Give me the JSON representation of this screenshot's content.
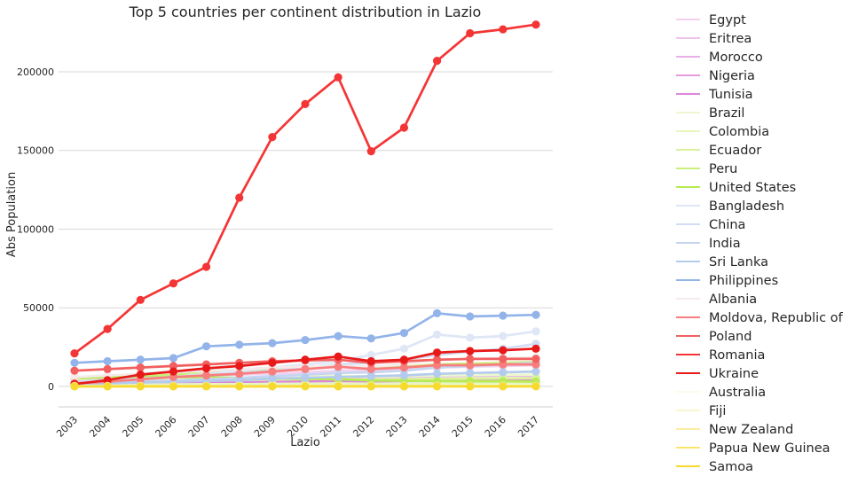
{
  "chart_data": {
    "type": "line",
    "title": "Top 5 countries per continent distribution in Lazio",
    "xlabel": "Lazio",
    "ylabel": "Abs Population",
    "x": [
      "2003",
      "2004",
      "2005",
      "2006",
      "2007",
      "2008",
      "2009",
      "2010",
      "2011",
      "2012",
      "2013",
      "2014",
      "2015",
      "2016",
      "2017"
    ],
    "ylim": [
      -13000,
      240000
    ],
    "yticks": [
      0,
      50000,
      100000,
      150000,
      200000
    ],
    "ytick_labels": [
      "0",
      "50000",
      "100000",
      "150000",
      "200000"
    ],
    "grid": "horizontal",
    "legend_position": "right",
    "series": [
      {
        "name": "Egypt",
        "color": "#f2d1f0",
        "values": [
          5000,
          5500,
          6000,
          6500,
          7000,
          7500,
          8000,
          9000,
          10000,
          10500,
          11000,
          12000,
          12500,
          13000,
          13500
        ]
      },
      {
        "name": "Eritrea",
        "color": "#eec3ec",
        "values": [
          2500,
          2600,
          2700,
          2800,
          2900,
          3000,
          3100,
          3200,
          3300,
          3200,
          3300,
          3400,
          3500,
          3500,
          3600
        ]
      },
      {
        "name": "Morocco",
        "color": "#e9b1e7",
        "values": [
          4000,
          4200,
          4500,
          4800,
          5000,
          5300,
          5600,
          6000,
          6300,
          5800,
          6100,
          6500,
          6700,
          6900,
          7000
        ]
      },
      {
        "name": "Nigeria",
        "color": "#e39be0",
        "values": [
          1500,
          1700,
          2000,
          2300,
          2600,
          3000,
          3300,
          3700,
          4000,
          3800,
          4100,
          4500,
          4800,
          5100,
          5300
        ]
      },
      {
        "name": "Tunisia",
        "color": "#dd86db",
        "values": [
          2000,
          2100,
          2300,
          2500,
          2700,
          2900,
          3100,
          3300,
          3500,
          3300,
          3500,
          3700,
          3800,
          3900,
          4000
        ]
      },
      {
        "name": "Brazil",
        "color": "#edf8cf",
        "values": [
          3500,
          3800,
          4200,
          4600,
          5000,
          5500,
          6000,
          6500,
          7000,
          6000,
          6500,
          7000,
          7200,
          7400,
          7500
        ]
      },
      {
        "name": "Colombia",
        "color": "#e6f6be",
        "values": [
          1000,
          1100,
          1200,
          1300,
          1400,
          1500,
          1600,
          1700,
          1800,
          1700,
          1800,
          1900,
          1950,
          2000,
          2000
        ]
      },
      {
        "name": "Ecuador",
        "color": "#d9f29d",
        "values": [
          2500,
          2800,
          3100,
          3400,
          3700,
          4000,
          4300,
          4600,
          4900,
          4300,
          4500,
          4800,
          5000,
          5100,
          5200
        ]
      },
      {
        "name": "Peru",
        "color": "#c9ee7a",
        "values": [
          5000,
          5800,
          6500,
          7500,
          8500,
          10000,
          11500,
          12500,
          13000,
          11500,
          12500,
          14000,
          14500,
          15000,
          15500
        ]
      },
      {
        "name": "United States",
        "color": "#b8ea55",
        "values": [
          6000,
          6200,
          6100,
          5900,
          5800,
          5500,
          5200,
          4800,
          4500,
          3800,
          3600,
          3400,
          3300,
          3200,
          3100
        ]
      },
      {
        "name": "Bangladesh",
        "color": "#dfe6f5",
        "values": [
          2000,
          3000,
          4500,
          6000,
          8000,
          10000,
          12000,
          14000,
          16000,
          20000,
          24000,
          33000,
          31000,
          32000,
          35000
        ]
      },
      {
        "name": "China",
        "color": "#d3ddf3",
        "values": [
          3000,
          4000,
          5000,
          6000,
          7000,
          8500,
          10000,
          12000,
          14000,
          15000,
          17000,
          20000,
          22000,
          24000,
          27000
        ]
      },
      {
        "name": "India",
        "color": "#c6d5f1",
        "values": [
          2000,
          2500,
          3000,
          3800,
          4500,
          5500,
          6500,
          7500,
          8500,
          9000,
          10000,
          12000,
          13000,
          14000,
          15000
        ]
      },
      {
        "name": "Sri Lanka",
        "color": "#b5cbed",
        "values": [
          1500,
          2000,
          2500,
          3000,
          3500,
          4000,
          5000,
          5500,
          6000,
          6500,
          7000,
          8000,
          8500,
          9000,
          9500
        ]
      },
      {
        "name": "Philippines",
        "color": "#93b4ea",
        "values": [
          15000,
          16000,
          17000,
          18000,
          25500,
          26500,
          27500,
          29500,
          32000,
          30500,
          34000,
          46500,
          44500,
          45000,
          45500
        ]
      },
      {
        "name": "Albania",
        "color": "#f6eaea",
        "values": [
          6000,
          7000,
          8000,
          9000,
          10000,
          11000,
          12000,
          12500,
          13000,
          12500,
          14000,
          17000,
          17500,
          18000,
          18500
        ]
      },
      {
        "name": "Moldova, Republic of",
        "color": "#f87e7e",
        "values": [
          2000,
          3000,
          4500,
          6000,
          7000,
          8000,
          9500,
          11000,
          12500,
          11000,
          12000,
          13500,
          13500,
          14000,
          14000
        ]
      },
      {
        "name": "Poland",
        "color": "#f25f5f",
        "values": [
          10000,
          11000,
          12000,
          13000,
          14000,
          15000,
          16000,
          16500,
          17000,
          15000,
          16000,
          17000,
          17500,
          17500,
          17500
        ]
      },
      {
        "name": "Romania",
        "color": "#f43535",
        "values": [
          21000,
          36500,
          55000,
          65500,
          76000,
          120000,
          158500,
          179500,
          196500,
          149500,
          164500,
          207000,
          224500,
          227000,
          230000
        ]
      },
      {
        "name": "Ukraine",
        "color": "#e81919",
        "values": [
          1500,
          4000,
          7500,
          9500,
          11500,
          13000,
          15000,
          17000,
          19000,
          16000,
          17000,
          21500,
          22500,
          23000,
          24000
        ]
      },
      {
        "name": "Australia",
        "color": "#fdfbe9",
        "values": [
          300,
          310,
          320,
          330,
          340,
          350,
          360,
          370,
          380,
          370,
          380,
          390,
          400,
          400,
          410
        ]
      },
      {
        "name": "Fiji",
        "color": "#fcf6cf",
        "values": [
          100,
          100,
          110,
          110,
          120,
          120,
          130,
          130,
          140,
          130,
          140,
          150,
          150,
          150,
          160
        ]
      },
      {
        "name": "New Zealand",
        "color": "#fbeea0",
        "values": [
          200,
          210,
          220,
          230,
          240,
          250,
          260,
          270,
          280,
          270,
          280,
          290,
          300,
          300,
          310
        ]
      },
      {
        "name": "Papua New Guinea",
        "color": "#fbe46e",
        "values": [
          50,
          50,
          50,
          60,
          60,
          60,
          70,
          70,
          70,
          70,
          70,
          80,
          80,
          80,
          80
        ]
      },
      {
        "name": "Samoa",
        "color": "#f7da30",
        "values": [
          20,
          20,
          20,
          20,
          20,
          30,
          30,
          30,
          30,
          30,
          30,
          30,
          30,
          30,
          30
        ]
      }
    ]
  }
}
